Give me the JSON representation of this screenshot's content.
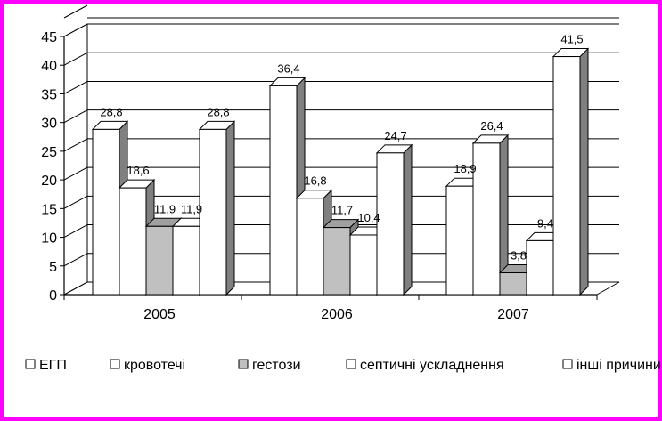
{
  "chart_data": {
    "type": "bar",
    "categories": [
      "2005",
      "2006",
      "2007"
    ],
    "series": [
      {
        "name": "ЕГП",
        "values": [
          28.8,
          36.4,
          18.9
        ],
        "labels": [
          "28,8",
          "36,4",
          "18,9"
        ],
        "color": "#ffffff"
      },
      {
        "name": "кровотечі",
        "values": [
          18.6,
          16.8,
          26.4
        ],
        "labels": [
          "18,6",
          "16,8",
          "26,4"
        ],
        "color": "#ffffff"
      },
      {
        "name": "гестози",
        "values": [
          11.9,
          11.7,
          3.8
        ],
        "labels": [
          "11,9",
          "11,7",
          "3,8"
        ],
        "color": "#c0c0c0"
      },
      {
        "name": "септичні ускладнення",
        "values": [
          11.9,
          10.4,
          9.4
        ],
        "labels": [
          "11,9",
          "10,4",
          "9,4"
        ],
        "color": "#ffffff"
      },
      {
        "name": "інші причини",
        "values": [
          28.8,
          24.7,
          41.5
        ],
        "labels": [
          "28,8",
          "24,7",
          "41,5"
        ],
        "color": "#ffffff"
      }
    ],
    "yticks": [
      "0",
      "5",
      "10",
      "15",
      "20",
      "25",
      "30",
      "35",
      "40",
      "45"
    ],
    "ylim": [
      0,
      45
    ],
    "grid": true,
    "legend_position": "bottom"
  },
  "frame_color": "#ff00ff"
}
